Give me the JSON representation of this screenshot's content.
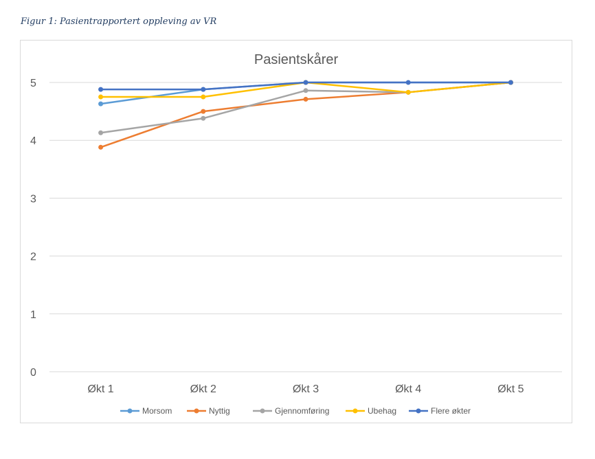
{
  "caption": "Figur 1: Pasientrapportert oppleving av VR",
  "colors": {
    "grid": "#d9d9d9",
    "text": "#595959"
  },
  "chart_data": {
    "type": "line",
    "title": "Pasientskårer",
    "xlabel": "",
    "ylabel": "",
    "categories": [
      "Økt 1",
      "Økt 2",
      "Økt 3",
      "Økt 4",
      "Økt 5"
    ],
    "ylim": [
      0,
      5
    ],
    "yticks": [
      0,
      1,
      2,
      3,
      4,
      5
    ],
    "grid": true,
    "legend_position": "bottom",
    "series": [
      {
        "name": "Morsom",
        "color": "#5b9bd5",
        "values": [
          4.63,
          4.88,
          5.0,
          null,
          5.0
        ]
      },
      {
        "name": "Nyttig",
        "color": "#ed7d31",
        "values": [
          3.88,
          4.5,
          4.71,
          4.83,
          5.0
        ]
      },
      {
        "name": "Gjennomføring",
        "color": "#a5a5a5",
        "values": [
          4.13,
          4.38,
          4.86,
          4.83,
          5.0
        ]
      },
      {
        "name": "Ubehag",
        "color": "#ffc000",
        "values": [
          4.75,
          4.75,
          5.0,
          4.83,
          5.0
        ]
      },
      {
        "name": "Flere økter",
        "color": "#4472c4",
        "values": [
          4.88,
          4.88,
          5.0,
          5.0,
          5.0
        ]
      }
    ]
  }
}
